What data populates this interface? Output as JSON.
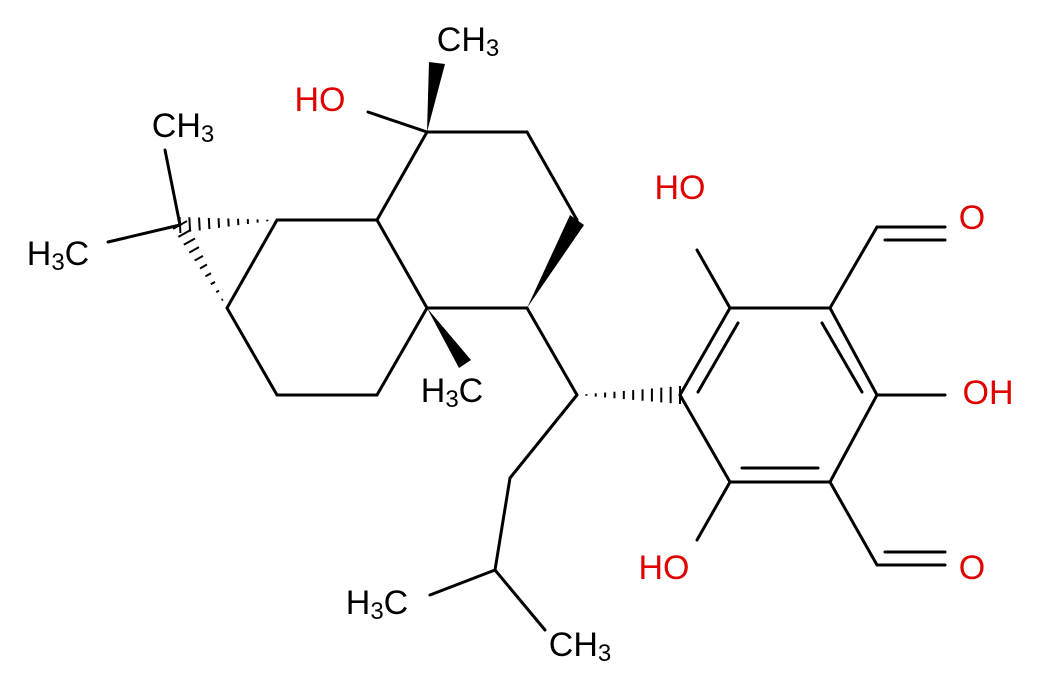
{
  "labels": [
    [
      "CH",
      "3"
    ],
    [
      "HO"
    ],
    [
      "CH",
      "3"
    ],
    [
      "H",
      "3",
      "C"
    ],
    [
      "H",
      "3",
      "C"
    ],
    [
      "HO"
    ],
    [
      "O"
    ],
    [
      "OH"
    ],
    [
      "HO"
    ],
    [
      "O"
    ],
    [
      "H",
      "3",
      "C"
    ],
    [
      "CH",
      "3"
    ]
  ]
}
